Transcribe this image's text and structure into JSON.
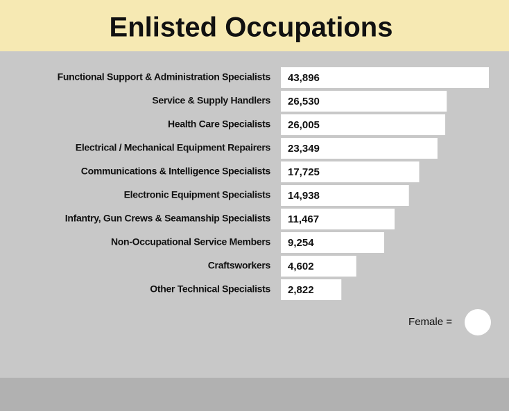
{
  "chart_data": {
    "type": "bar",
    "orientation": "horizontal",
    "title": "Enlisted Occupations",
    "categories": [
      "Functional Support & Administration Specialists",
      "Service & Supply Handlers",
      "Health Care Specialists",
      "Electrical / Mechanical Equipment Repairers",
      "Communications & Intelligence Specialists",
      "Electronic Equipment Specialists",
      "Infantry, Gun Crews & Seamanship Specialists",
      "Non-Occupational Service Members",
      "Craftsworkers",
      "Other Technical Specialists"
    ],
    "values": [
      43896,
      26530,
      26005,
      23349,
      17725,
      14938,
      11467,
      9254,
      4602,
      2822
    ],
    "value_labels": [
      "43,896",
      "26,530",
      "26,005",
      "23,349",
      "17,725",
      "14,938",
      "11,467",
      "9,254",
      "4,602",
      "2,822"
    ],
    "color": "#ffffff",
    "legend_label": "Female ="
  }
}
